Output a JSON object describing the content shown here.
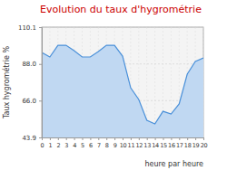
{
  "chart_data": {
    "type": "area",
    "title": "Evolution du taux d'hygrométrie",
    "x_label": "heure par heure",
    "y_label": "Taux hygrométrie %",
    "x": [
      0,
      1,
      2,
      3,
      4,
      5,
      6,
      7,
      8,
      9,
      10,
      11,
      12,
      13,
      14,
      15,
      16,
      17,
      18,
      19,
      20
    ],
    "values": [
      94.9,
      92.2,
      99.2,
      99.2,
      96.0,
      92.2,
      92.2,
      95.4,
      99.2,
      99.2,
      92.7,
      73.7,
      66.7,
      54.2,
      52.0,
      59.6,
      58.0,
      64.0,
      81.9,
      89.5,
      91.6
    ],
    "color": "#4a90d9",
    "xlim": [
      0,
      20
    ],
    "xticks": [
      0,
      1,
      2,
      3,
      4,
      5,
      6,
      7,
      8,
      9,
      10,
      11,
      12,
      13,
      14,
      15,
      16,
      17,
      18,
      19,
      20
    ],
    "ylim": [
      43.9,
      110.1
    ],
    "yticks": [
      43.9,
      {
        "value": 66,
        "label": "66.0"
      },
      {
        "value": 88,
        "label": "88.0"
      },
      110.1
    ],
    "grid": true
  }
}
